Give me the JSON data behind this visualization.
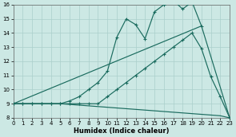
{
  "xlabel": "Humidex (Indice chaleur)",
  "xlim": [
    0,
    23
  ],
  "ylim": [
    8,
    16
  ],
  "yticks": [
    8,
    9,
    10,
    11,
    12,
    13,
    14,
    15,
    16
  ],
  "xticks": [
    0,
    1,
    2,
    3,
    4,
    5,
    6,
    7,
    8,
    9,
    10,
    11,
    12,
    13,
    14,
    15,
    16,
    17,
    18,
    19,
    20,
    21,
    22,
    23
  ],
  "bg_color": "#cce8e4",
  "grid_color": "#aacfcb",
  "line_color": "#1a6b5e",
  "line1_x": [
    0,
    1,
    2,
    3,
    4,
    5,
    6,
    7,
    8,
    9,
    10,
    11,
    12,
    13,
    14,
    15,
    16,
    17,
    18,
    19,
    20
  ],
  "line1_y": [
    9.0,
    9.0,
    9.0,
    9.0,
    9.0,
    9.0,
    9.2,
    9.5,
    10.0,
    10.5,
    11.3,
    13.7,
    15.0,
    14.6,
    13.6,
    15.5,
    16.0,
    16.3,
    15.7,
    16.2,
    14.5
  ],
  "line2_x": [
    0,
    1,
    2,
    3,
    4,
    5,
    6,
    7,
    8,
    9,
    10,
    11,
    12,
    13,
    14,
    15,
    16,
    17,
    18,
    19,
    20,
    21,
    22,
    23
  ],
  "line2_y": [
    9.0,
    9.0,
    9.0,
    9.0,
    9.0,
    9.0,
    9.0,
    9.0,
    9.0,
    9.0,
    9.5,
    10.0,
    10.5,
    11.0,
    11.5,
    12.0,
    12.5,
    13.0,
    13.5,
    14.0,
    12.9,
    10.9,
    9.5,
    8.0
  ],
  "line3_x": [
    0,
    20,
    23
  ],
  "line3_y": [
    9.0,
    14.5,
    8.0
  ],
  "line4_x": [
    0,
    1,
    2,
    3,
    4,
    5,
    6,
    7,
    8,
    9,
    10,
    11,
    12,
    13,
    14,
    15,
    16,
    17,
    18,
    19,
    20,
    21,
    22,
    23
  ],
  "line4_y": [
    9.0,
    9.0,
    9.0,
    9.0,
    9.0,
    9.0,
    8.95,
    8.9,
    8.85,
    8.8,
    8.75,
    8.7,
    8.65,
    8.6,
    8.55,
    8.5,
    8.45,
    8.4,
    8.35,
    8.3,
    8.25,
    8.2,
    8.15,
    8.0
  ]
}
